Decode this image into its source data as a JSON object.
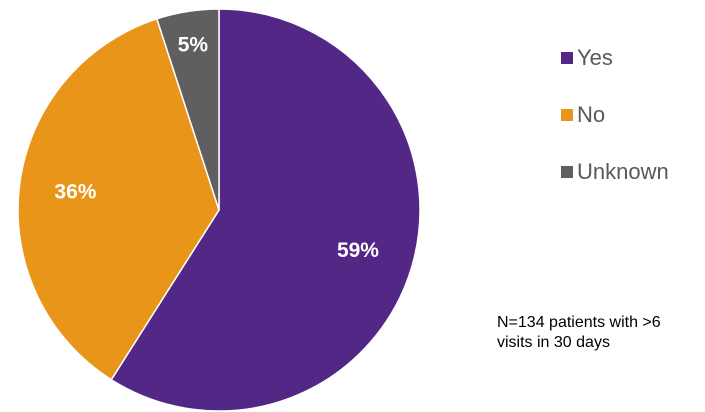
{
  "chart_data": {
    "type": "pie",
    "title": "",
    "slices": [
      {
        "label": "Yes",
        "value": 59,
        "display": "59%",
        "color": "#532785"
      },
      {
        "label": "No",
        "value": 36,
        "display": "36%",
        "color": "#E8951A"
      },
      {
        "label": "Unknown",
        "value": 5,
        "display": "5%",
        "color": "#5F5F5F"
      }
    ],
    "legend": {
      "placement": "right"
    },
    "annotation": "N=134 patients with >6 visits in 30 days"
  }
}
